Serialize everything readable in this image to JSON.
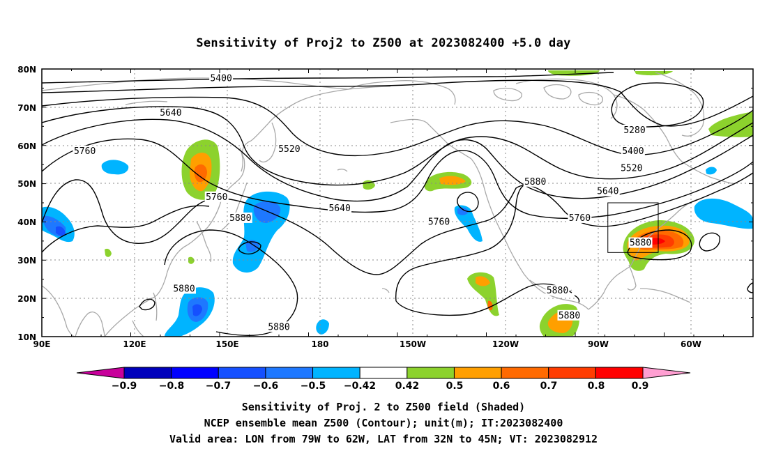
{
  "title": "Sensitivity of Proj2 to Z500 at 2023082400 +5.0 day",
  "lat_labels": [
    "80N",
    "70N",
    "60N",
    "50N",
    "40N",
    "30N",
    "20N",
    "10N"
  ],
  "lon_labels": [
    "90E",
    "120E",
    "150E",
    "180",
    "150W",
    "120W",
    "90W",
    "60W"
  ],
  "contour_labels": [
    {
      "text": "5400",
      "lon": 150.5,
      "lat": 77.5
    },
    {
      "text": "5640",
      "lon": 133.5,
      "lat": 68.5
    },
    {
      "text": "5760",
      "lon": 104.5,
      "lat": 58.5
    },
    {
      "text": "5520",
      "lon": 173.5,
      "lat": 59.0
    },
    {
      "text": "5760",
      "lon": 149.0,
      "lat": 46.5
    },
    {
      "text": "5880",
      "lon": 157.0,
      "lat": 41.0
    },
    {
      "text": "5640",
      "lon": 190.5,
      "lat": 43.5
    },
    {
      "text": "5760",
      "lon": 224.0,
      "lat": 40.0
    },
    {
      "text": "5880",
      "lon": 256.5,
      "lat": 50.5
    },
    {
      "text": "5280",
      "lon": 290.0,
      "lat": 64.0
    },
    {
      "text": "5400",
      "lon": 289.5,
      "lat": 58.5
    },
    {
      "text": "5520",
      "lon": 289.0,
      "lat": 54.0
    },
    {
      "text": "5640",
      "lon": 281.0,
      "lat": 48.0
    },
    {
      "text": "5760",
      "lon": 271.5,
      "lat": 41.0
    },
    {
      "text": "5880",
      "lon": 292.0,
      "lat": 34.5
    },
    {
      "text": "5880",
      "lon": 138.0,
      "lat": 22.5
    },
    {
      "text": "5880",
      "lon": 170.0,
      "lat": 12.5
    },
    {
      "text": "5880",
      "lon": 264.0,
      "lat": 22.0
    },
    {
      "text": "5880",
      "lon": 268.0,
      "lat": 15.5
    }
  ],
  "colorbar": {
    "labels": [
      "−0.9",
      "−0.8",
      "−0.7",
      "−0.6",
      "−0.5",
      "−0.42",
      "0.42",
      "0.5",
      "0.6",
      "0.7",
      "0.8",
      "0.9"
    ],
    "colors": [
      "#0000bb",
      "#0000ff",
      "#1550ff",
      "#1e78ff",
      "#00b4ff",
      "#ffffff",
      "#8cd22d",
      "#ff9f00",
      "#ff6a00",
      "#ff3c00",
      "#ff0000"
    ],
    "low_end_color": "#c8009b",
    "high_end_color": "#ff9fd2"
  },
  "footer": {
    "line1": "Sensitivity of Proj. 2 to Z500 field (Shaded)",
    "line2": "NCEP ensemble mean Z500 (Contour); unit(m); IT:2023082400",
    "line3": "Valid area: LON from 79W to 62W, LAT from 32N to 45N; VT: 2023082912"
  },
  "valid_area": {
    "lon_min": -79,
    "lon_max": -62,
    "lat_min": 32,
    "lat_max": 45
  }
}
